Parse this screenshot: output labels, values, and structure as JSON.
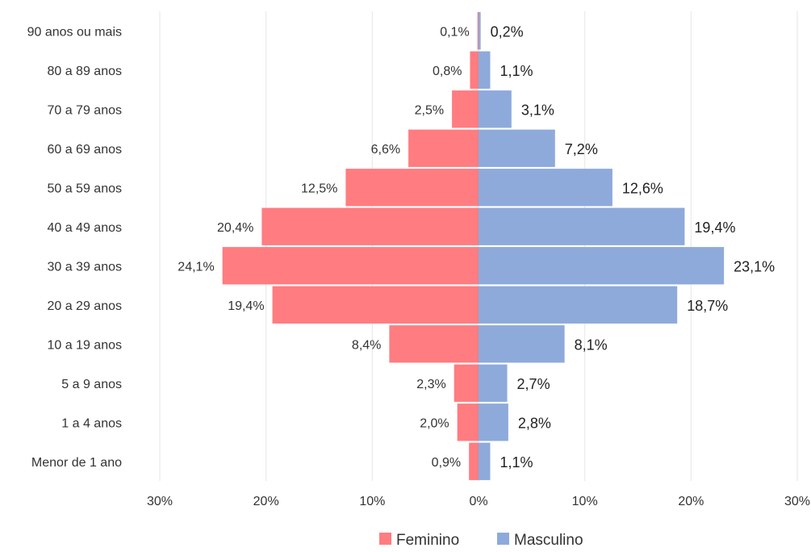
{
  "chart_data": {
    "type": "bar",
    "orientation": "horizontal",
    "categories": [
      "90 anos ou mais",
      "80 a 89 anos",
      "70 a 79 anos",
      "60 a 69 anos",
      "50 a 59 anos",
      "40 a 49 anos",
      "30 a 39 anos",
      "20 a 29 anos",
      "10 a 19 anos",
      "5 a 9 anos",
      "1 a 4 anos",
      "Menor de 1 ano"
    ],
    "series": [
      {
        "name": "Feminino",
        "color": "#ff7c80",
        "values": [
          0.1,
          0.8,
          2.5,
          6.6,
          12.5,
          20.4,
          24.1,
          19.4,
          8.4,
          2.3,
          2.0,
          0.9
        ],
        "labels": [
          "0,1%",
          "0,8%",
          "2,5%",
          "6,6%",
          "12,5%",
          "20,4%",
          "24,1%",
          "19,4%",
          "8,4%",
          "2,3%",
          "2,0%",
          "0,9%"
        ]
      },
      {
        "name": "Masculino",
        "color": "#8eaadb",
        "values": [
          0.2,
          1.1,
          3.1,
          7.2,
          12.6,
          19.4,
          23.1,
          18.7,
          8.1,
          2.7,
          2.8,
          1.1
        ],
        "labels": [
          "0,2%",
          "1,1%",
          "3,1%",
          "7,2%",
          "12,6%",
          "19,4%",
          "23,1%",
          "18,7%",
          "8,1%",
          "2,7%",
          "2,8%",
          "1,1%"
        ]
      }
    ],
    "xlim": [
      -30,
      30
    ],
    "x_ticks": [
      -30,
      -20,
      -10,
      0,
      10,
      20,
      30
    ],
    "x_tick_labels": [
      "30%",
      "20%",
      "10%",
      "0%",
      "10%",
      "20%",
      "30%"
    ],
    "grid": true,
    "legend_position": "bottom",
    "gridline_color": "#e6e6e6"
  }
}
